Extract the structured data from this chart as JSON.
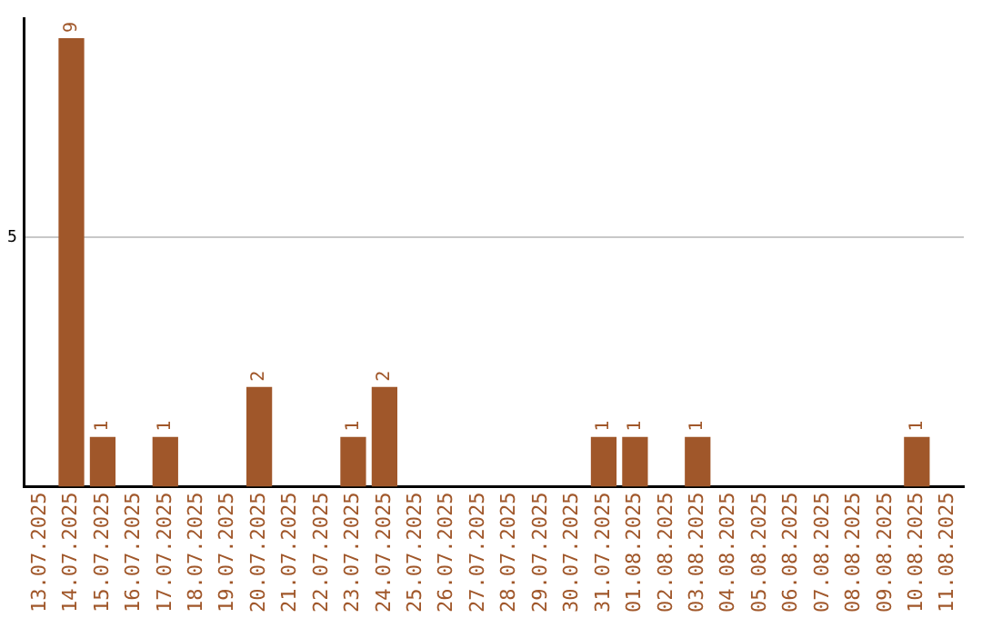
{
  "chart_data": {
    "type": "bar",
    "categories": [
      "13.07.2025",
      "14.07.2025",
      "15.07.2025",
      "16.07.2025",
      "17.07.2025",
      "18.07.2025",
      "19.07.2025",
      "20.07.2025",
      "21.07.2025",
      "22.07.2025",
      "23.07.2025",
      "24.07.2025",
      "25.07.2025",
      "26.07.2025",
      "27.07.2025",
      "28.07.2025",
      "29.07.2025",
      "30.07.2025",
      "31.07.2025",
      "01.08.2025",
      "02.08.2025",
      "03.08.2025",
      "04.08.2025",
      "05.08.2025",
      "06.08.2025",
      "07.08.2025",
      "08.08.2025",
      "09.08.2025",
      "10.08.2025",
      "11.08.2025"
    ],
    "values": [
      0,
      9,
      1,
      0,
      1,
      0,
      0,
      2,
      0,
      0,
      1,
      2,
      0,
      0,
      0,
      0,
      0,
      0,
      1,
      1,
      0,
      1,
      0,
      0,
      0,
      0,
      0,
      0,
      1,
      0
    ],
    "color": "#a0572a",
    "value_labels": [
      null,
      "9",
      "1",
      null,
      "1",
      null,
      null,
      "2",
      null,
      null,
      "1",
      "2",
      null,
      null,
      null,
      null,
      null,
      null,
      "1",
      "1",
      null,
      "1",
      null,
      null,
      null,
      null,
      null,
      null,
      "1",
      null
    ],
    "ylim": [
      0,
      9.4
    ],
    "yticks": [
      5
    ],
    "grid": "y",
    "legend": false
  }
}
